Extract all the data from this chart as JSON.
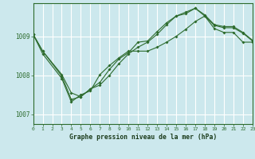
{
  "title": "Graphe pression niveau de la mer (hPa)",
  "bg_color": "#cce8ed",
  "plot_bg_color": "#cce8ed",
  "grid_color": "#ffffff",
  "line_color": "#2d6b2d",
  "xlim": [
    0,
    23
  ],
  "ylim": [
    1006.75,
    1009.85
  ],
  "yticks": [
    1007,
    1008,
    1009
  ],
  "xticks": [
    0,
    1,
    2,
    3,
    4,
    5,
    6,
    7,
    8,
    9,
    10,
    11,
    12,
    13,
    14,
    15,
    16,
    17,
    18,
    19,
    20,
    21,
    22,
    23
  ],
  "series1": {
    "x": [
      0,
      1,
      3,
      4,
      5,
      6,
      7,
      8,
      9,
      10,
      11,
      12,
      13,
      14,
      15,
      16,
      17,
      18,
      19,
      20,
      21,
      22,
      23
    ],
    "y": [
      1009.05,
      1008.62,
      1008.02,
      1007.55,
      1007.45,
      1007.65,
      1007.75,
      1008.0,
      1008.3,
      1008.55,
      1008.72,
      1008.85,
      1009.05,
      1009.3,
      1009.52,
      1009.62,
      1009.72,
      1009.55,
      1009.3,
      1009.25,
      1009.25,
      1009.1,
      1008.9
    ]
  },
  "series2": {
    "x": [
      0,
      1,
      3,
      4,
      5,
      6,
      7,
      8,
      9,
      10,
      11,
      12,
      13,
      14,
      15,
      16,
      17,
      18,
      19,
      20,
      21,
      22,
      23
    ],
    "y": [
      1009.05,
      1008.62,
      1007.98,
      1007.38,
      1007.45,
      1007.65,
      1007.82,
      1008.15,
      1008.42,
      1008.58,
      1008.85,
      1008.88,
      1009.12,
      1009.35,
      1009.52,
      1009.58,
      1009.72,
      1009.52,
      1009.28,
      1009.22,
      1009.22,
      1009.08,
      1008.88
    ]
  },
  "series3": {
    "x": [
      0,
      1,
      3,
      4,
      5,
      6,
      7,
      8,
      9,
      10,
      11,
      12,
      13,
      14,
      15,
      16,
      17,
      18,
      19,
      20,
      21,
      22,
      23
    ],
    "y": [
      1009.05,
      1008.55,
      1007.92,
      1007.32,
      1007.5,
      1007.6,
      1008.02,
      1008.25,
      1008.45,
      1008.62,
      1008.62,
      1008.62,
      1008.72,
      1008.85,
      1009.0,
      1009.18,
      1009.38,
      1009.52,
      1009.2,
      1009.1,
      1009.1,
      1008.85,
      1008.85
    ]
  }
}
